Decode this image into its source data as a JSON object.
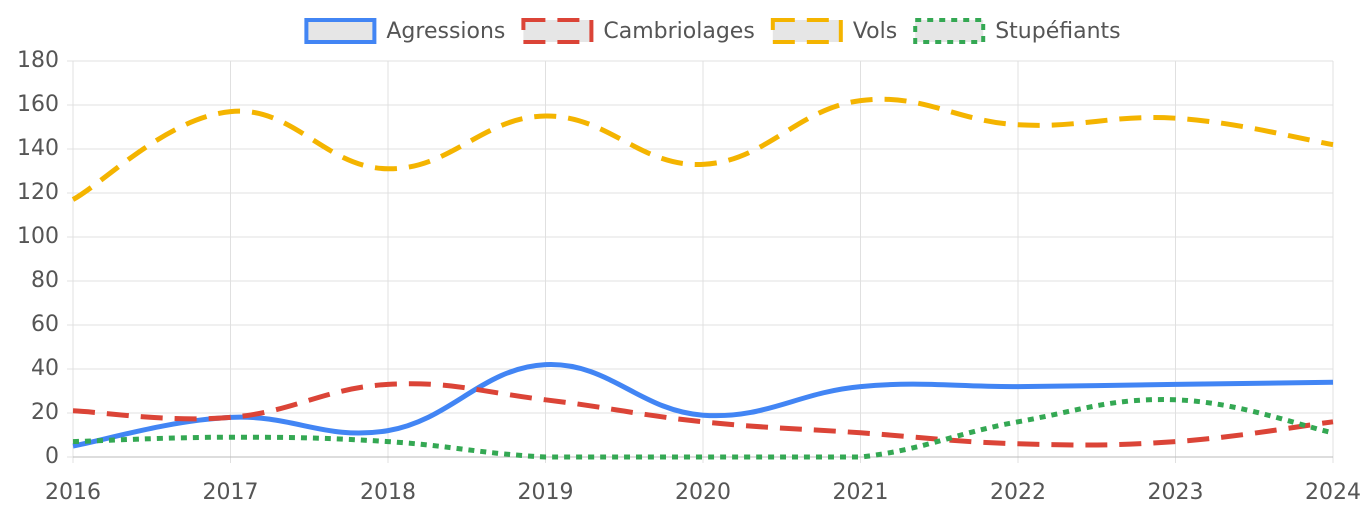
{
  "chart_data": {
    "type": "line",
    "categories": [
      "2016",
      "2017",
      "2018",
      "2019",
      "2020",
      "2021",
      "2022",
      "2023",
      "2024"
    ],
    "series": [
      {
        "name": "Agressions",
        "color": "#4285f4",
        "dash": "solid",
        "values": [
          5,
          18,
          12,
          42,
          19,
          32,
          32,
          33,
          34
        ]
      },
      {
        "name": "Cambriolages",
        "color": "#db4437",
        "dash": "dashed",
        "values": [
          21,
          18,
          33,
          26,
          16,
          11,
          6,
          7,
          16
        ]
      },
      {
        "name": "Vols",
        "color": "#f4b400",
        "dash": "dashed",
        "values": [
          117,
          157,
          131,
          155,
          133,
          162,
          151,
          154,
          142
        ]
      },
      {
        "name": "Stupéfiants",
        "color": "#34a853",
        "dash": "dotted",
        "values": [
          7,
          9,
          7,
          0,
          0,
          0,
          16,
          26,
          11
        ]
      }
    ],
    "ylim": [
      0,
      180
    ],
    "yticks": [
      0,
      20,
      40,
      60,
      80,
      100,
      120,
      140,
      160,
      180
    ],
    "grid": true,
    "legend": "top"
  }
}
